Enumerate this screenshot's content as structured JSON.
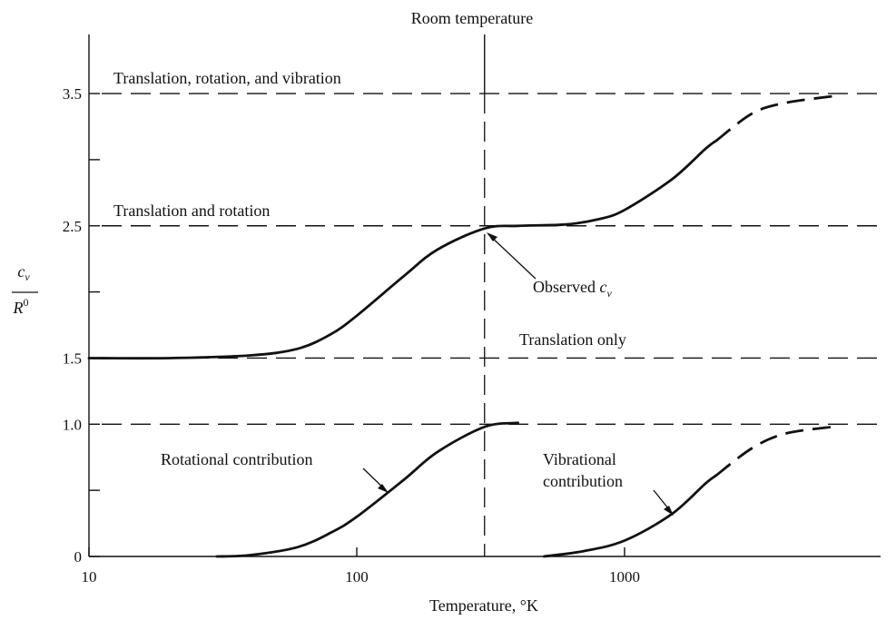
{
  "chart_data": {
    "type": "line",
    "title": "",
    "xlabel": "Temperature, °K",
    "ylabel_num": "c",
    "ylabel_num_sub": "v",
    "ylabel_den": "R",
    "ylabel_den_sup": "0",
    "x_scale": "log",
    "xlim": [
      10,
      8000
    ],
    "ylim": [
      0,
      4.0
    ],
    "x_ticks": [
      {
        "value": 10,
        "label": "10"
      },
      {
        "value": 100,
        "label": "100"
      },
      {
        "value": 1000,
        "label": "1000"
      }
    ],
    "y_ticks": [
      {
        "value": 0,
        "label": "0"
      },
      {
        "value": 0.5,
        "label": ""
      },
      {
        "value": 1.0,
        "label": "1.0"
      },
      {
        "value": 1.5,
        "label": "1.5"
      },
      {
        "value": 2.0,
        "label": ""
      },
      {
        "value": 2.5,
        "label": "2.5"
      },
      {
        "value": 3.0,
        "label": ""
      },
      {
        "value": 3.5,
        "label": "3.5"
      }
    ],
    "reference_lines": [
      {
        "y": 3.5,
        "label": "Translation, rotation, and vibration"
      },
      {
        "y": 2.5,
        "label": "Translation and rotation"
      },
      {
        "y": 1.5,
        "label": "Translation only"
      },
      {
        "y": 1.0,
        "label": ""
      }
    ],
    "room_temperature": {
      "x": 300,
      "label": "Room temperature"
    },
    "series": [
      {
        "name": "Observed c_v",
        "x": [
          10,
          20,
          40,
          60,
          80,
          100,
          150,
          200,
          300,
          400,
          600,
          800,
          1000,
          1500,
          2000,
          3000,
          4000,
          6000
        ],
        "y": [
          1.5,
          1.5,
          1.52,
          1.57,
          1.68,
          1.82,
          2.12,
          2.32,
          2.48,
          2.5,
          2.51,
          2.55,
          2.62,
          2.85,
          3.08,
          3.35,
          3.43,
          3.48
        ],
        "dashed_from_x": 2200
      },
      {
        "name": "Rotational contribution",
        "x": [
          30,
          40,
          60,
          80,
          100,
          150,
          200,
          300,
          400
        ],
        "y": [
          0.0,
          0.01,
          0.07,
          0.18,
          0.3,
          0.58,
          0.79,
          0.98,
          1.01
        ]
      },
      {
        "name": "Vibrational contribution",
        "x": [
          500,
          700,
          1000,
          1500,
          2000,
          3000,
          4000,
          6000
        ],
        "y": [
          0.0,
          0.04,
          0.12,
          0.32,
          0.55,
          0.82,
          0.93,
          0.98
        ],
        "dashed_from_x": 2200
      }
    ],
    "annotations": [
      {
        "text": "Observed",
        "text_sub": "c",
        "text_sub2": "v"
      },
      {
        "text": "Rotational contribution"
      },
      {
        "text": "Vibrational"
      },
      {
        "text": "contribution"
      }
    ]
  }
}
